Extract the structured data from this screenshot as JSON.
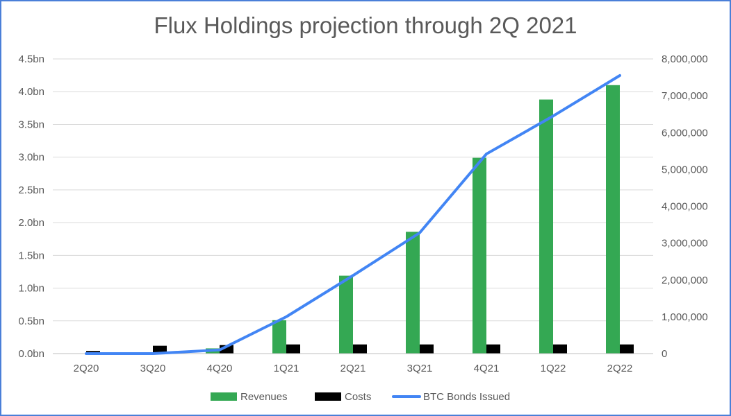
{
  "chart_data": {
    "type": "bar",
    "title": "Flux Holdings projection through 2Q 2021",
    "categories": [
      "2Q20",
      "3Q20",
      "4Q20",
      "1Q21",
      "2Q21",
      "3Q21",
      "4Q21",
      "1Q22",
      "2Q22"
    ],
    "series": [
      {
        "name": "Revenues",
        "type": "bar",
        "axis": "left",
        "color": "#34a853",
        "values": [
          0.0,
          0.0,
          0.08,
          0.51,
          1.19,
          1.86,
          2.99,
          3.88,
          4.1
        ]
      },
      {
        "name": "Costs",
        "type": "bar",
        "axis": "left",
        "color": "#000000",
        "values": [
          0.04,
          0.12,
          0.13,
          0.14,
          0.14,
          0.14,
          0.14,
          0.14,
          0.14
        ]
      },
      {
        "name": "BTC Bonds Issued",
        "type": "line",
        "axis": "right",
        "color": "#4285f4",
        "values": [
          0,
          0,
          100000,
          1000000,
          2120000,
          3280000,
          5420000,
          6450000,
          7550000
        ]
      }
    ],
    "y_left": {
      "min": 0,
      "max": 4.5,
      "ticks": [
        "0.0bn",
        "0.5bn",
        "1.0bn",
        "1.5bn",
        "2.0bn",
        "2.5bn",
        "3.0bn",
        "3.5bn",
        "4.0bn",
        "4.5bn"
      ]
    },
    "y_right": {
      "min": 0,
      "max": 8000000,
      "ticks": [
        "0",
        "1,000,000",
        "2,000,000",
        "3,000,000",
        "4,000,000",
        "5,000,000",
        "6,000,000",
        "7,000,000",
        "8,000,000"
      ]
    },
    "grid": true,
    "legend_position": "bottom",
    "legend": [
      "Revenues",
      "Costs",
      "BTC Bonds Issued"
    ]
  }
}
